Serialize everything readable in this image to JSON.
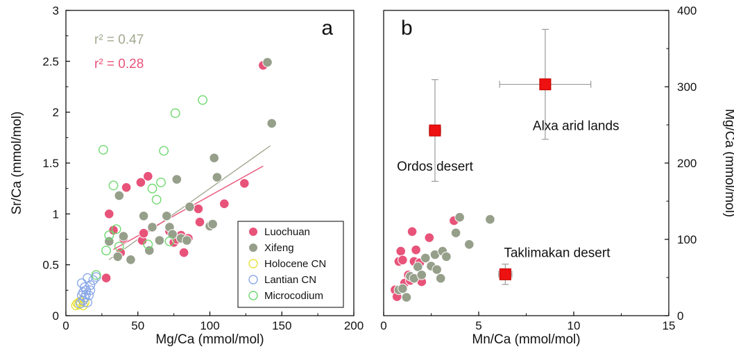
{
  "chart_data": [
    {
      "panel": "a",
      "type": "scatter",
      "xlabel": "Mg/Ca (mmol/mol)",
      "ylabel": "Sr/Ca (mmol/mol)",
      "xlim": [
        0,
        200
      ],
      "ylim": [
        0,
        3
      ],
      "xticks": [
        "0",
        "50",
        "100",
        "150",
        "200"
      ],
      "yticks": [
        "0",
        "0.5",
        "1",
        "1.5",
        "2",
        "2.5",
        "3"
      ],
      "grid": false,
      "legend_position": "bottom-right",
      "annotations": [
        {
          "text": "r² = 0.47",
          "color": "#a0a890"
        },
        {
          "text": "r² = 0.28",
          "color": "#e8537a"
        }
      ],
      "fit_lines": [
        {
          "color": "#a0a890",
          "x": [
            30,
            142
          ],
          "y": [
            0.55,
            1.67
          ]
        },
        {
          "color": "#e8537a",
          "x": [
            33,
            137
          ],
          "y": [
            0.65,
            1.47
          ]
        }
      ],
      "series": [
        {
          "name": "Luochuan",
          "marker": "filled",
          "color": "#e8537a",
          "x": [
            28,
            30,
            33,
            38,
            40,
            42,
            52,
            53,
            54,
            57,
            72,
            75,
            77,
            80,
            82,
            85,
            92,
            93,
            110,
            124,
            137
          ],
          "y": [
            0.37,
            1.0,
            0.84,
            0.62,
            0.76,
            1.26,
            1.31,
            0.74,
            0.81,
            1.37,
            0.83,
            0.72,
            0.75,
            0.79,
            0.62,
            0.76,
            1.05,
            0.92,
            1.1,
            1.3,
            2.46
          ]
        },
        {
          "name": "Xifeng",
          "marker": "filled",
          "color": "#969f8a",
          "x": [
            30,
            36,
            37,
            40,
            45,
            54,
            58,
            60,
            65,
            70,
            72,
            74,
            77,
            80,
            84,
            86,
            100,
            102,
            103,
            105,
            140,
            143
          ],
          "y": [
            0.73,
            0.58,
            1.18,
            0.78,
            0.55,
            0.98,
            0.64,
            0.87,
            0.74,
            0.98,
            0.87,
            0.8,
            1.34,
            0.76,
            0.74,
            1.07,
            0.88,
            0.9,
            1.55,
            1.36,
            2.49,
            1.89
          ]
        },
        {
          "name": "Holocene CN",
          "marker": "open",
          "color": "#e8e03a",
          "x": [
            7,
            8,
            9,
            10,
            12,
            13
          ],
          "y": [
            0.1,
            0.12,
            0.11,
            0.14,
            0.1,
            0.13
          ]
        },
        {
          "name": "Lantian CN",
          "marker": "open",
          "color": "#8aa8e8",
          "x": [
            10,
            11,
            11,
            12,
            12,
            13,
            13,
            14,
            14,
            15,
            15,
            16,
            17,
            17,
            19,
            21
          ],
          "y": [
            0.12,
            0.2,
            0.32,
            0.15,
            0.23,
            0.18,
            0.28,
            0.21,
            0.25,
            0.37,
            0.13,
            0.2,
            0.25,
            0.3,
            0.35,
            0.38
          ]
        },
        {
          "name": "Microcodium",
          "marker": "open",
          "color": "#6ed86e",
          "x": [
            21,
            26,
            28,
            30,
            33,
            35,
            37,
            57,
            60,
            63,
            66,
            68,
            72,
            76,
            95
          ],
          "y": [
            0.4,
            1.63,
            0.64,
            0.79,
            1.28,
            0.85,
            0.68,
            0.7,
            1.25,
            1.14,
            1.31,
            1.62,
            0.73,
            1.99,
            2.12
          ]
        }
      ]
    },
    {
      "panel": "b",
      "type": "scatter",
      "xlabel": "Mn/Ca (mmol/mol)",
      "ylabel": "Mg/Ca (mmol/mol)",
      "xlim": [
        0,
        15
      ],
      "ylim": [
        0,
        450
      ],
      "xticks": [
        "0",
        "5",
        "10",
        "15"
      ],
      "yticks": [
        "0",
        "100",
        "200",
        "300",
        "400"
      ],
      "y_axis_side": "right",
      "grid": false,
      "series": [
        {
          "name": "Luochuan",
          "marker": "filled",
          "color": "#e8537a",
          "x": [
            0.6,
            0.7,
            0.8,
            0.9,
            1.0,
            1.1,
            1.3,
            1.4,
            1.5,
            1.6,
            1.7,
            1.9,
            2.0,
            2.4,
            3.7
          ],
          "y": [
            38,
            28,
            80,
            95,
            82,
            48,
            60,
            52,
            124,
            80,
            97,
            78,
            50,
            115,
            140
          ]
        },
        {
          "name": "Xifeng",
          "marker": "filled",
          "color": "#969f8a",
          "x": [
            0.8,
            1.0,
            1.2,
            1.4,
            1.6,
            1.8,
            2.0,
            2.2,
            2.5,
            2.7,
            2.8,
            3.0,
            3.1,
            3.3,
            3.8,
            4.0,
            4.5,
            5.6
          ],
          "y": [
            38,
            40,
            27,
            58,
            55,
            72,
            60,
            85,
            73,
            90,
            68,
            55,
            95,
            87,
            122,
            145,
            105,
            142
          ]
        }
      ],
      "sources": [
        {
          "label": "Ordos desert",
          "x": 2.7,
          "y": 273,
          "x_err": 0.3,
          "y_err": 75
        },
        {
          "label": "Alxa arid lands",
          "x": 8.5,
          "y": 341,
          "x_err": 2.4,
          "y_err": 81
        },
        {
          "label": "Taklimakan desert",
          "x": 6.4,
          "y": 61,
          "x_err": 0.35,
          "y_err": 15
        }
      ]
    }
  ],
  "panel_a": {
    "letter": "a",
    "xlabel": "Mg/Ca (mmol/mol)",
    "ylabel": "Sr/Ca (mmol/mol)",
    "r2_gray": "r² = 0.47",
    "r2_pink": "r² = 0.28",
    "legend": [
      "Luochuan",
      "Xifeng",
      "Holocene CN",
      "Lantian CN",
      "Microcodium"
    ]
  },
  "panel_b": {
    "letter": "b",
    "xlabel": "Mn/Ca (mmol/mol)",
    "ylabel": "Mg/Ca (mmol/mol)"
  }
}
